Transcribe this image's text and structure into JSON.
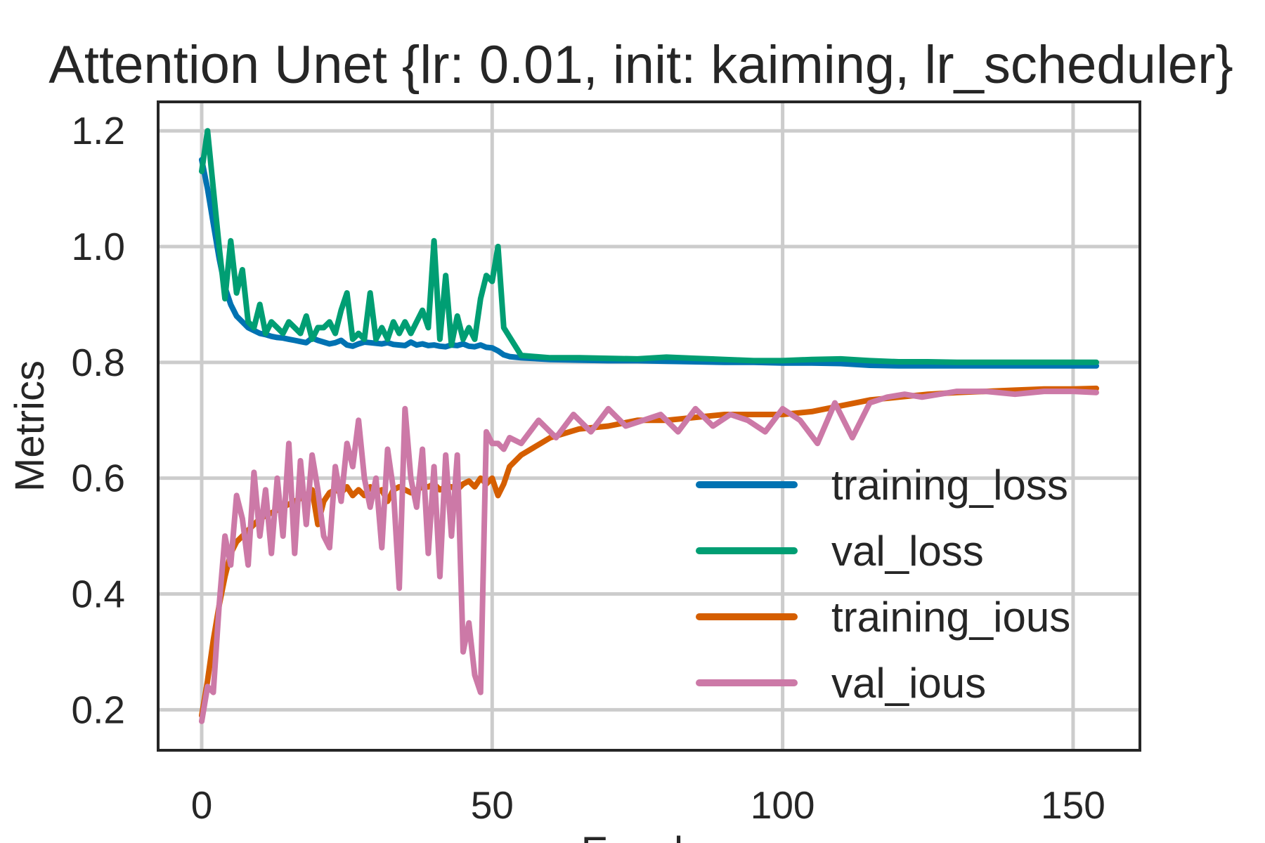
{
  "chart_data": {
    "type": "line",
    "title": "Attention Unet {lr: 0.01, init: kaiming, lr_scheduler}",
    "xlabel": "Epochs",
    "ylabel": "Metrics",
    "xlim": [
      -7.5,
      161.5
    ],
    "ylim": [
      0.13,
      1.25
    ],
    "xticks": [
      0,
      50,
      100,
      150
    ],
    "yticks": [
      0.2,
      0.4,
      0.6,
      0.8,
      1.0,
      1.2
    ],
    "ytick_labels": [
      "0.2",
      "0.4",
      "0.6",
      "0.8",
      "1.0",
      "1.2"
    ],
    "grid": true,
    "legend_position": "center-right",
    "series": [
      {
        "name": "training_loss",
        "color": "#0072b2",
        "x": [
          0,
          1,
          2,
          3,
          4,
          5,
          6,
          7,
          8,
          9,
          10,
          11,
          12,
          13,
          14,
          15,
          16,
          17,
          18,
          19,
          20,
          21,
          22,
          23,
          24,
          25,
          26,
          27,
          28,
          29,
          30,
          31,
          32,
          33,
          34,
          35,
          36,
          37,
          38,
          39,
          40,
          41,
          42,
          43,
          44,
          45,
          46,
          47,
          48,
          49,
          50,
          51,
          52,
          53,
          55,
          60,
          65,
          70,
          75,
          80,
          85,
          90,
          95,
          100,
          105,
          110,
          115,
          120,
          125,
          130,
          135,
          140,
          145,
          150,
          154
        ],
        "y": [
          1.15,
          1.1,
          1.04,
          0.98,
          0.93,
          0.9,
          0.88,
          0.87,
          0.86,
          0.855,
          0.85,
          0.848,
          0.845,
          0.843,
          0.842,
          0.84,
          0.838,
          0.836,
          0.834,
          0.842,
          0.838,
          0.835,
          0.832,
          0.834,
          0.838,
          0.83,
          0.828,
          0.832,
          0.835,
          0.834,
          0.833,
          0.832,
          0.834,
          0.831,
          0.83,
          0.829,
          0.835,
          0.83,
          0.832,
          0.829,
          0.83,
          0.828,
          0.827,
          0.83,
          0.829,
          0.832,
          0.828,
          0.827,
          0.83,
          0.826,
          0.825,
          0.82,
          0.813,
          0.81,
          0.808,
          0.805,
          0.804,
          0.803,
          0.803,
          0.802,
          0.801,
          0.8,
          0.8,
          0.799,
          0.799,
          0.798,
          0.795,
          0.794,
          0.794,
          0.794,
          0.794,
          0.794,
          0.794,
          0.794,
          0.794
        ]
      },
      {
        "name": "val_loss",
        "color": "#009e73",
        "x": [
          0,
          1,
          2,
          3,
          4,
          5,
          6,
          7,
          8,
          9,
          10,
          11,
          12,
          13,
          14,
          15,
          16,
          17,
          18,
          19,
          20,
          21,
          22,
          23,
          24,
          25,
          26,
          27,
          28,
          29,
          30,
          31,
          32,
          33,
          34,
          35,
          36,
          37,
          38,
          39,
          40,
          41,
          42,
          43,
          44,
          45,
          46,
          47,
          48,
          49,
          50,
          51,
          52,
          55,
          60,
          65,
          70,
          75,
          80,
          85,
          90,
          95,
          100,
          105,
          110,
          115,
          120,
          125,
          130,
          135,
          140,
          145,
          150,
          154
        ],
        "y": [
          1.13,
          1.2,
          1.1,
          1.0,
          0.91,
          1.01,
          0.92,
          0.96,
          0.87,
          0.86,
          0.9,
          0.85,
          0.87,
          0.86,
          0.85,
          0.87,
          0.86,
          0.85,
          0.88,
          0.84,
          0.86,
          0.86,
          0.87,
          0.85,
          0.89,
          0.92,
          0.84,
          0.85,
          0.84,
          0.92,
          0.84,
          0.86,
          0.84,
          0.87,
          0.85,
          0.87,
          0.85,
          0.87,
          0.89,
          0.86,
          1.01,
          0.84,
          0.95,
          0.83,
          0.88,
          0.84,
          0.86,
          0.84,
          0.91,
          0.95,
          0.94,
          1.0,
          0.86,
          0.812,
          0.808,
          0.808,
          0.807,
          0.806,
          0.809,
          0.807,
          0.805,
          0.803,
          0.803,
          0.805,
          0.806,
          0.803,
          0.801,
          0.801,
          0.8,
          0.8,
          0.8,
          0.8,
          0.8,
          0.8
        ]
      },
      {
        "name": "training_ious",
        "color": "#d55e00",
        "x": [
          0,
          1,
          2,
          3,
          4,
          5,
          6,
          7,
          8,
          9,
          10,
          11,
          12,
          13,
          14,
          15,
          16,
          17,
          18,
          19,
          20,
          21,
          22,
          23,
          24,
          25,
          26,
          27,
          28,
          29,
          30,
          31,
          32,
          33,
          34,
          35,
          36,
          37,
          38,
          39,
          40,
          41,
          42,
          43,
          44,
          45,
          46,
          47,
          48,
          49,
          50,
          51,
          52,
          53,
          55,
          60,
          65,
          70,
          75,
          80,
          85,
          90,
          95,
          100,
          105,
          110,
          115,
          120,
          125,
          130,
          135,
          140,
          145,
          150,
          154
        ],
        "y": [
          0.19,
          0.25,
          0.32,
          0.38,
          0.43,
          0.47,
          0.49,
          0.5,
          0.51,
          0.52,
          0.53,
          0.535,
          0.54,
          0.545,
          0.55,
          0.555,
          0.56,
          0.565,
          0.57,
          0.58,
          0.52,
          0.56,
          0.575,
          0.58,
          0.575,
          0.585,
          0.57,
          0.58,
          0.57,
          0.585,
          0.575,
          0.58,
          0.56,
          0.58,
          0.585,
          0.58,
          0.575,
          0.58,
          0.585,
          0.585,
          0.59,
          0.58,
          0.585,
          0.585,
          0.58,
          0.59,
          0.595,
          0.585,
          0.6,
          0.59,
          0.6,
          0.57,
          0.59,
          0.62,
          0.64,
          0.67,
          0.685,
          0.69,
          0.7,
          0.7,
          0.705,
          0.71,
          0.71,
          0.71,
          0.715,
          0.725,
          0.735,
          0.74,
          0.745,
          0.748,
          0.75,
          0.752,
          0.754,
          0.754,
          0.755
        ]
      },
      {
        "name": "val_ious",
        "color": "#cc79a7",
        "x": [
          0,
          1,
          2,
          3,
          4,
          5,
          6,
          7,
          8,
          9,
          10,
          11,
          12,
          13,
          14,
          15,
          16,
          17,
          18,
          19,
          20,
          21,
          22,
          23,
          24,
          25,
          26,
          27,
          28,
          29,
          30,
          31,
          32,
          33,
          34,
          35,
          36,
          37,
          38,
          39,
          40,
          41,
          42,
          43,
          44,
          45,
          46,
          47,
          48,
          49,
          50,
          51,
          52,
          53,
          55,
          58,
          61,
          64,
          67,
          70,
          73,
          76,
          79,
          82,
          85,
          88,
          91,
          94,
          97,
          100,
          103,
          106,
          109,
          112,
          115,
          118,
          121,
          124,
          127,
          130,
          135,
          140,
          145,
          150,
          154
        ],
        "y": [
          0.18,
          0.24,
          0.23,
          0.38,
          0.5,
          0.45,
          0.57,
          0.53,
          0.45,
          0.61,
          0.5,
          0.58,
          0.47,
          0.6,
          0.5,
          0.66,
          0.47,
          0.63,
          0.52,
          0.64,
          0.58,
          0.5,
          0.48,
          0.62,
          0.56,
          0.66,
          0.62,
          0.7,
          0.6,
          0.55,
          0.6,
          0.48,
          0.65,
          0.58,
          0.41,
          0.72,
          0.6,
          0.55,
          0.65,
          0.47,
          0.62,
          0.43,
          0.64,
          0.5,
          0.64,
          0.3,
          0.35,
          0.26,
          0.23,
          0.68,
          0.66,
          0.66,
          0.65,
          0.67,
          0.66,
          0.7,
          0.67,
          0.71,
          0.68,
          0.72,
          0.69,
          0.7,
          0.71,
          0.68,
          0.72,
          0.69,
          0.71,
          0.7,
          0.68,
          0.72,
          0.7,
          0.66,
          0.73,
          0.67,
          0.73,
          0.74,
          0.745,
          0.74,
          0.745,
          0.75,
          0.75,
          0.745,
          0.75,
          0.75,
          0.748
        ]
      }
    ]
  }
}
